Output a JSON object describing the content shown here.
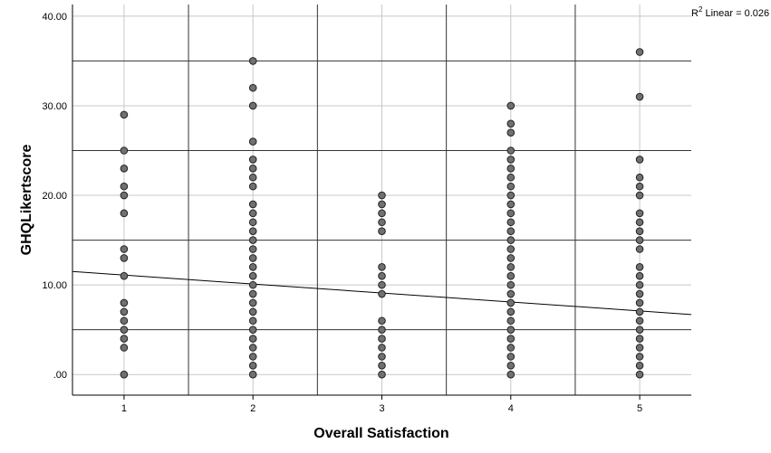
{
  "chart_data": {
    "type": "scatter",
    "xlabel": "Overall Satisfaction",
    "ylabel": "GHQLikertscore",
    "x_ticks": [
      "1",
      "2",
      "3",
      "4",
      "5"
    ],
    "y_ticks": [
      ".00",
      "10.00",
      "20.00",
      "30.00",
      "40.00"
    ],
    "xlim": [
      0.6,
      5.4
    ],
    "ylim": [
      -2.3,
      41.3
    ],
    "grid": true,
    "annotation": {
      "prefix": "R",
      "superscript": "2",
      "text": " Linear = 0.026"
    },
    "fit_line": {
      "type": "linear",
      "start": [
        0.6,
        11.5
      ],
      "end": [
        5.4,
        6.7
      ]
    },
    "reference_lines_y": [
      5,
      15,
      25,
      35
    ],
    "reference_lines_x": [
      1.5,
      2.5,
      3.5,
      4.5
    ],
    "points": [
      {
        "x": 1,
        "y": [
          0,
          3,
          4,
          5,
          6,
          7,
          8,
          11,
          13,
          14,
          18,
          20,
          21,
          23,
          25,
          29
        ]
      },
      {
        "x": 2,
        "y": [
          0,
          1,
          2,
          3,
          4,
          5,
          6,
          7,
          8,
          9,
          10,
          11,
          12,
          13,
          14,
          15,
          16,
          17,
          18,
          19,
          21,
          22,
          23,
          24,
          26,
          30,
          32,
          35
        ]
      },
      {
        "x": 3,
        "y": [
          0,
          1,
          2,
          3,
          4,
          5,
          6,
          9,
          10,
          11,
          12,
          16,
          17,
          18,
          19,
          20
        ]
      },
      {
        "x": 4,
        "y": [
          0,
          1,
          2,
          3,
          4,
          5,
          6,
          7,
          8,
          9,
          10,
          11,
          12,
          13,
          14,
          15,
          16,
          17,
          18,
          19,
          20,
          21,
          22,
          23,
          24,
          25,
          27,
          28,
          30
        ]
      },
      {
        "x": 5,
        "y": [
          0,
          1,
          2,
          3,
          4,
          5,
          6,
          7,
          8,
          9,
          10,
          11,
          12,
          14,
          15,
          16,
          17,
          18,
          20,
          21,
          22,
          24,
          31,
          36
        ]
      }
    ],
    "marker_color": "#707070",
    "marker_edge": "#222222"
  }
}
